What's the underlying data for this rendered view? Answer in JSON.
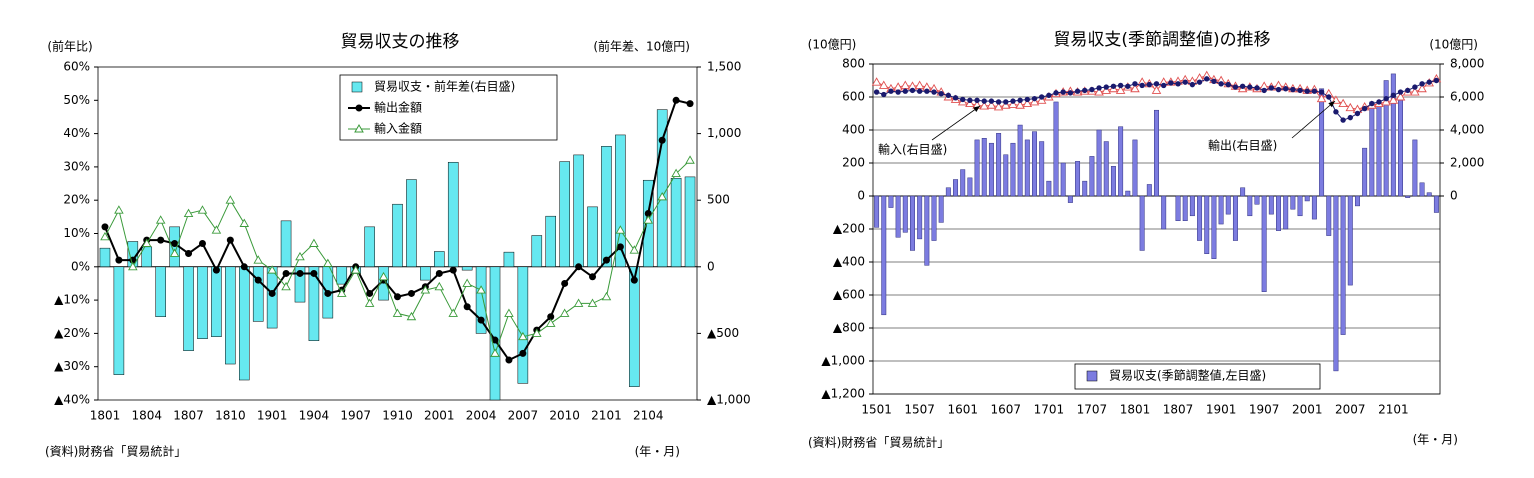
{
  "chart_data": [
    {
      "type": "combo",
      "title": "貿易収支の推移",
      "y_label": "(前年比)",
      "y2_label": "(前年差、10億円)",
      "x_label": "(年・月)",
      "source": "(資料)財務省「貿易統計」",
      "grid": false,
      "categories": [
        "1801",
        null,
        null,
        "1804",
        null,
        null,
        "1807",
        null,
        null,
        "1810",
        null,
        null,
        "1901",
        null,
        null,
        "1904",
        null,
        null,
        "1907",
        null,
        null,
        "1910",
        null,
        null,
        "2001",
        null,
        null,
        "2004",
        null,
        null,
        "2007",
        null,
        null,
        "2010",
        null,
        null,
        "2101",
        null,
        null,
        "2104",
        null,
        null,
        null
      ],
      "ylim": [
        -40,
        60
      ],
      "yticks": [
        {
          "value": 60,
          "label": "60%"
        },
        {
          "value": 50,
          "label": "50%"
        },
        {
          "value": 40,
          "label": "40%"
        },
        {
          "value": 30,
          "label": "30%"
        },
        {
          "value": 20,
          "label": "20%"
        },
        {
          "value": 10,
          "label": "10%"
        },
        {
          "value": 0,
          "label": "0%"
        },
        {
          "value": -10,
          "label": "▲10%"
        },
        {
          "value": -20,
          "label": "▲20%"
        },
        {
          "value": -30,
          "label": "▲30%"
        },
        {
          "value": -40,
          "label": "▲40%"
        }
      ],
      "y2lim": [
        -1000,
        1500
      ],
      "y2ticks": [
        {
          "value": 1500,
          "label": "1,500"
        },
        {
          "value": 1000,
          "label": "1,000"
        },
        500,
        0,
        {
          "value": -500,
          "label": "▲500"
        },
        {
          "value": -1000,
          "label": "▲1,000"
        }
      ],
      "series": [
        {
          "name": "貿易収支・前年差(右目盛)",
          "type": "bar",
          "axis": "y2",
          "color": "#66e8f0",
          "values": [
            140,
            -810,
            190,
            150,
            -375,
            300,
            -630,
            -540,
            -525,
            -730,
            -850,
            -410,
            -460,
            345,
            -265,
            -555,
            -385,
            -130,
            -50,
            300,
            -250,
            470,
            655,
            -100,
            115,
            785,
            -25,
            -500,
            -1000,
            110,
            -875,
            235,
            380,
            790,
            840,
            450,
            905,
            990,
            -900,
            650,
            1180,
            665,
            675
          ]
        },
        {
          "name": "輸出金額",
          "type": "line",
          "marker": "circle",
          "color": "#000000",
          "values": [
            12,
            2,
            2,
            8,
            8,
            7,
            4,
            7,
            -1,
            8,
            0,
            -4,
            -8,
            -2,
            -2,
            -2,
            -8,
            -7,
            0,
            -8,
            -4,
            -9,
            -8,
            -6,
            -2,
            -1,
            -12,
            -16,
            -22,
            -28,
            -26,
            -19,
            -15,
            -5,
            0,
            -3,
            2,
            6,
            -4,
            16,
            38,
            50,
            49
          ]
        },
        {
          "name": "輸入金額",
          "type": "line",
          "marker": "triangle",
          "color": "#3a9a3a",
          "values": [
            9,
            17,
            0,
            7,
            14,
            4,
            16,
            17,
            11,
            20,
            13,
            2,
            -1,
            -6,
            3,
            7,
            1,
            -8,
            -1,
            -11,
            -3,
            -14,
            -15,
            -7,
            -6,
            -14,
            -5,
            -7,
            -26,
            -14,
            -21,
            -20,
            -17,
            -14,
            -11,
            -11,
            -9,
            11,
            5,
            14,
            21,
            28,
            32
          ]
        }
      ]
    },
    {
      "type": "combo",
      "title": "貿易収支(季節調整値)の推移",
      "y_label": "(10億円)",
      "y2_label": "(10億円)",
      "x_label": "(年・月)",
      "source": "(資料)財務省「貿易統計」",
      "grid": true,
      "categories": [
        "1501",
        null,
        null,
        null,
        null,
        null,
        "1507",
        null,
        null,
        null,
        null,
        null,
        "1601",
        null,
        null,
        null,
        null,
        null,
        "1607",
        null,
        null,
        null,
        null,
        null,
        "1701",
        null,
        null,
        null,
        null,
        null,
        "1707",
        null,
        null,
        null,
        null,
        null,
        "1801",
        null,
        null,
        null,
        null,
        null,
        "1807",
        null,
        null,
        null,
        null,
        null,
        "1901",
        null,
        null,
        null,
        null,
        null,
        "1907",
        null,
        null,
        null,
        null,
        null,
        "2001",
        null,
        null,
        null,
        null,
        null,
        "2007",
        null,
        null,
        null,
        null,
        null,
        "2101",
        null,
        null,
        null,
        null,
        null,
        null
      ],
      "ylim": [
        -1200,
        800
      ],
      "yticks": [
        800,
        600,
        400,
        200,
        0,
        {
          "value": -200,
          "label": "▲200"
        },
        {
          "value": -400,
          "label": "▲400"
        },
        {
          "value": -600,
          "label": "▲600"
        },
        {
          "value": -800,
          "label": "▲800"
        },
        {
          "value": -1000,
          "label": "▲1,000"
        },
        {
          "value": -1200,
          "label": "▲1,200"
        }
      ],
      "y2lim": [
        -12000,
        8000
      ],
      "y2ticks": [
        {
          "value": 8000,
          "label": "8,000"
        },
        {
          "value": 6000,
          "label": "6,000"
        },
        {
          "value": 4000,
          "label": "4,000"
        },
        {
          "value": 2000,
          "label": "2,000"
        },
        0
      ],
      "series": [
        {
          "name": "貿易収支(季節調整値,左目盛)",
          "type": "bar",
          "color": "#7c7ce0",
          "values": [
            -190,
            -720,
            -70,
            -250,
            -220,
            -330,
            -260,
            -420,
            -270,
            -160,
            50,
            100,
            160,
            110,
            340,
            350,
            320,
            380,
            250,
            320,
            430,
            340,
            390,
            330,
            90,
            570,
            200,
            -40,
            210,
            90,
            240,
            400,
            330,
            180,
            420,
            30,
            340,
            -330,
            70,
            520,
            -200,
            0,
            -150,
            -150,
            -120,
            -270,
            -350,
            -380,
            -170,
            -110,
            -270,
            50,
            -120,
            -50,
            -580,
            -110,
            -210,
            -200,
            -80,
            -120,
            -30,
            -140,
            650,
            -240,
            -1060,
            -840,
            -540,
            -60,
            290,
            570,
            560,
            700,
            740,
            580,
            -10,
            340,
            80,
            20,
            -100
          ]
        },
        {
          "name": "輸入(右目盛)",
          "type": "line",
          "marker": "triangle",
          "axis": "y2",
          "color": "#e05050",
          "values": [
            6900,
            6700,
            6500,
            6600,
            6700,
            6650,
            6700,
            6600,
            6500,
            6300,
            6000,
            5850,
            5700,
            5600,
            5500,
            5450,
            5500,
            5400,
            5500,
            5550,
            5500,
            5600,
            5700,
            5800,
            6000,
            6200,
            6300,
            6350,
            6300,
            6350,
            6350,
            6300,
            6400,
            6500,
            6400,
            6600,
            6500,
            6900,
            6800,
            6400,
            6900,
            6900,
            6950,
            7050,
            6950,
            7150,
            7300,
            7050,
            7000,
            6800,
            6650,
            6500,
            6600,
            6500,
            6650,
            6600,
            6700,
            6600,
            6500,
            6500,
            6400,
            6450,
            5900,
            6200,
            5800,
            5600,
            5350,
            5250,
            5400,
            5500,
            5600,
            5700,
            5800,
            6000,
            6300,
            6300,
            6500,
            6850,
            7100
          ]
        },
        {
          "name": "輸出(右目盛)",
          "type": "line",
          "marker": "circle",
          "axis": "y2",
          "color": "#1a1a6e",
          "values": [
            6300,
            6150,
            6350,
            6300,
            6350,
            6400,
            6350,
            6350,
            6300,
            6200,
            6100,
            5950,
            5850,
            5800,
            5800,
            5750,
            5750,
            5700,
            5700,
            5750,
            5800,
            5850,
            5900,
            6000,
            6100,
            6250,
            6300,
            6250,
            6350,
            6400,
            6450,
            6550,
            6600,
            6650,
            6700,
            6650,
            6800,
            6700,
            6750,
            6800,
            6700,
            6850,
            6800,
            6900,
            6750,
            6900,
            7100,
            6950,
            6800,
            6750,
            6600,
            6650,
            6600,
            6550,
            6400,
            6550,
            6450,
            6500,
            6450,
            6400,
            6350,
            6350,
            6300,
            6000,
            5100,
            4600,
            4750,
            5000,
            5300,
            5600,
            5700,
            5900,
            6100,
            6300,
            6400,
            6600,
            6800,
            6900,
            7000
          ]
        }
      ]
    }
  ]
}
